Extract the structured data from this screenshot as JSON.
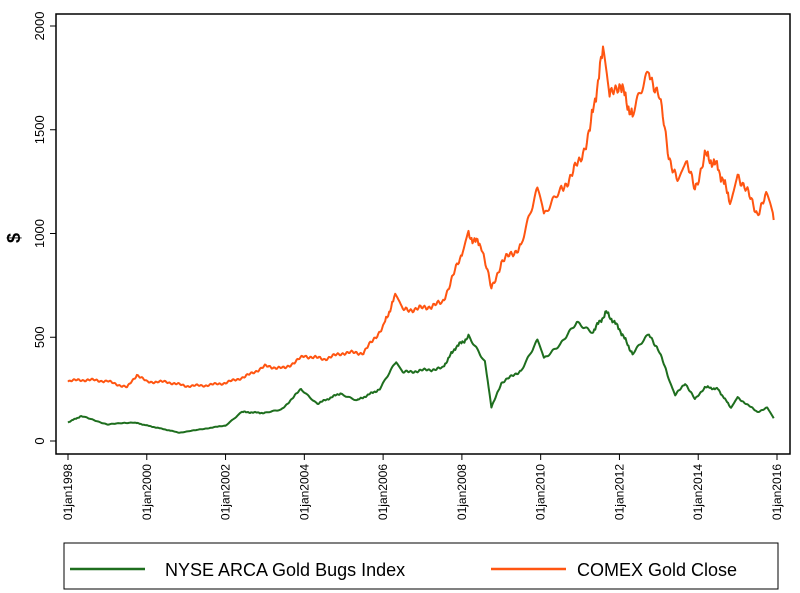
{
  "chart_data": {
    "type": "line",
    "title": "",
    "xlabel": "",
    "ylabel": "$",
    "ylim": [
      0,
      2000
    ],
    "yticks": [
      "0",
      "500",
      "1000",
      "1500",
      "2000"
    ],
    "xlim": [
      "1998-01",
      "2016-01"
    ],
    "xticks": [
      "01jan1998",
      "01jan2000",
      "01jan2002",
      "01jan2004",
      "01jan2006",
      "01jan2008",
      "01jan2010",
      "01jan2012",
      "01jan2014",
      "01jan2016"
    ],
    "grid": false,
    "legend_position": "bottom",
    "series": [
      {
        "name": "NYSE ARCA Gold Bugs Index",
        "color": "#1e6e1e",
        "x": [
          "1998-01",
          "1998-05",
          "1999-01",
          "1999-09",
          "2000-01",
          "2000-11",
          "2001-07",
          "2002-01",
          "2002-06",
          "2003-01",
          "2003-06",
          "2003-12",
          "2004-05",
          "2004-12",
          "2005-05",
          "2005-12",
          "2006-05",
          "2006-07",
          "2007-01",
          "2007-07",
          "2007-11",
          "2008-03",
          "2008-08",
          "2008-10",
          "2009-01",
          "2009-07",
          "2009-12",
          "2010-02",
          "2010-07",
          "2010-12",
          "2011-05",
          "2011-09",
          "2012-01",
          "2012-05",
          "2012-10",
          "2013-01",
          "2013-04",
          "2013-06",
          "2013-09",
          "2013-12",
          "2014-03",
          "2014-07",
          "2014-11",
          "2015-01",
          "2015-07",
          "2015-10",
          "2015-12"
        ],
        "values": [
          90,
          120,
          80,
          90,
          75,
          40,
          60,
          75,
          140,
          135,
          150,
          250,
          180,
          230,
          195,
          250,
          380,
          330,
          340,
          350,
          450,
          500,
          380,
          160,
          280,
          340,
          480,
          400,
          460,
          570,
          530,
          620,
          540,
          420,
          510,
          440,
          300,
          220,
          280,
          200,
          260,
          250,
          160,
          210,
          140,
          160,
          110
        ]
      },
      {
        "name": "COMEX Gold Close",
        "color": "#ff5511",
        "x": [
          "1998-01",
          "1998-07",
          "1999-01",
          "1999-07",
          "1999-10",
          "2000-01",
          "2000-07",
          "2001-01",
          "2001-07",
          "2002-01",
          "2002-07",
          "2003-01",
          "2003-07",
          "2004-01",
          "2004-07",
          "2005-01",
          "2005-07",
          "2006-01",
          "2006-05",
          "2006-07",
          "2007-01",
          "2007-07",
          "2008-01",
          "2008-03",
          "2008-07",
          "2008-10",
          "2009-01",
          "2009-07",
          "2009-12",
          "2010-02",
          "2010-07",
          "2011-01",
          "2011-04",
          "2011-08",
          "2011-10",
          "2012-01",
          "2012-05",
          "2012-10",
          "2013-01",
          "2013-04",
          "2013-07",
          "2013-09",
          "2013-12",
          "2014-03",
          "2014-07",
          "2014-11",
          "2015-01",
          "2015-07",
          "2015-10",
          "2015-12"
        ],
        "values": [
          290,
          295,
          288,
          258,
          320,
          285,
          285,
          265,
          268,
          280,
          310,
          360,
          350,
          410,
          395,
          425,
          425,
          550,
          710,
          630,
          640,
          665,
          900,
          990,
          940,
          730,
          860,
          940,
          1200,
          1080,
          1200,
          1350,
          1500,
          1880,
          1650,
          1730,
          1560,
          1780,
          1670,
          1380,
          1240,
          1360,
          1210,
          1380,
          1320,
          1150,
          1290,
          1100,
          1180,
          1065
        ]
      }
    ]
  }
}
